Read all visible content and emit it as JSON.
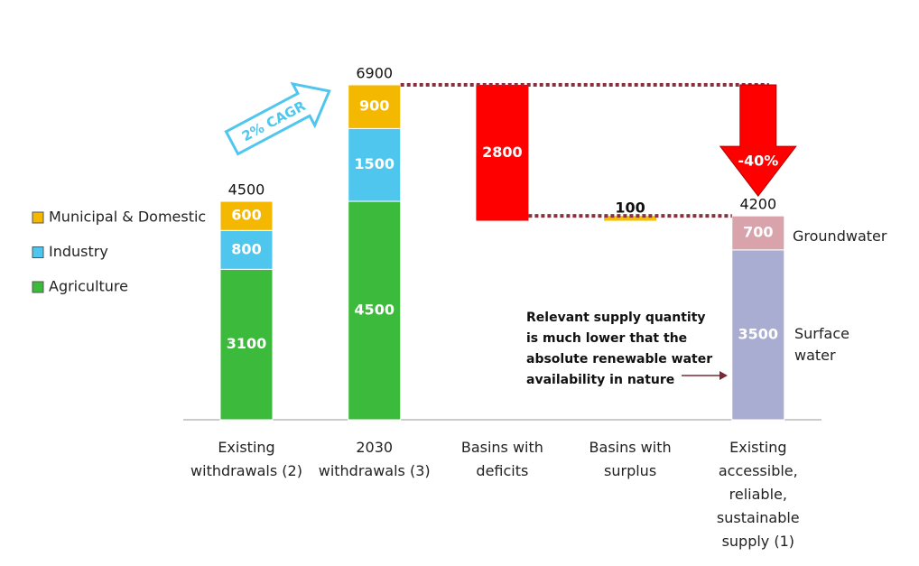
{
  "chart_data": {
    "type": "waterfall",
    "categories": [
      "Existing withdrawals (2)",
      "2030 withdrawals (3)",
      "Basins with deficits",
      "Basins with surplus",
      "Existing accessible, reliable, sustainable supply (1)"
    ],
    "series": [
      {
        "name": "Agriculture",
        "color": "#3cba3c",
        "values": [
          3100,
          4500,
          null,
          null,
          null
        ]
      },
      {
        "name": "Industry",
        "color": "#4fc6ee",
        "values": [
          800,
          1500,
          null,
          null,
          null
        ]
      },
      {
        "name": "Municipal & Domestic",
        "color": "#f5b800",
        "values": [
          600,
          900,
          null,
          null,
          null
        ]
      }
    ],
    "totals": [
      4500,
      6900,
      null,
      null,
      4200
    ],
    "deficit": {
      "value": 2800,
      "color": "#ff0000"
    },
    "surplus": {
      "value": 100,
      "color": "#f2c200"
    },
    "supply": [
      {
        "name": "Surface water",
        "value": 3500,
        "color": "#aaadd2"
      },
      {
        "name": "Groundwater",
        "value": 700,
        "color": "#d8a3ab"
      }
    ],
    "growth_annotation": "2% CAGR",
    "reduction_annotation": "-40%",
    "note": "Relevant supply quantity is much lower that the absolute renewable water availability in nature"
  }
}
